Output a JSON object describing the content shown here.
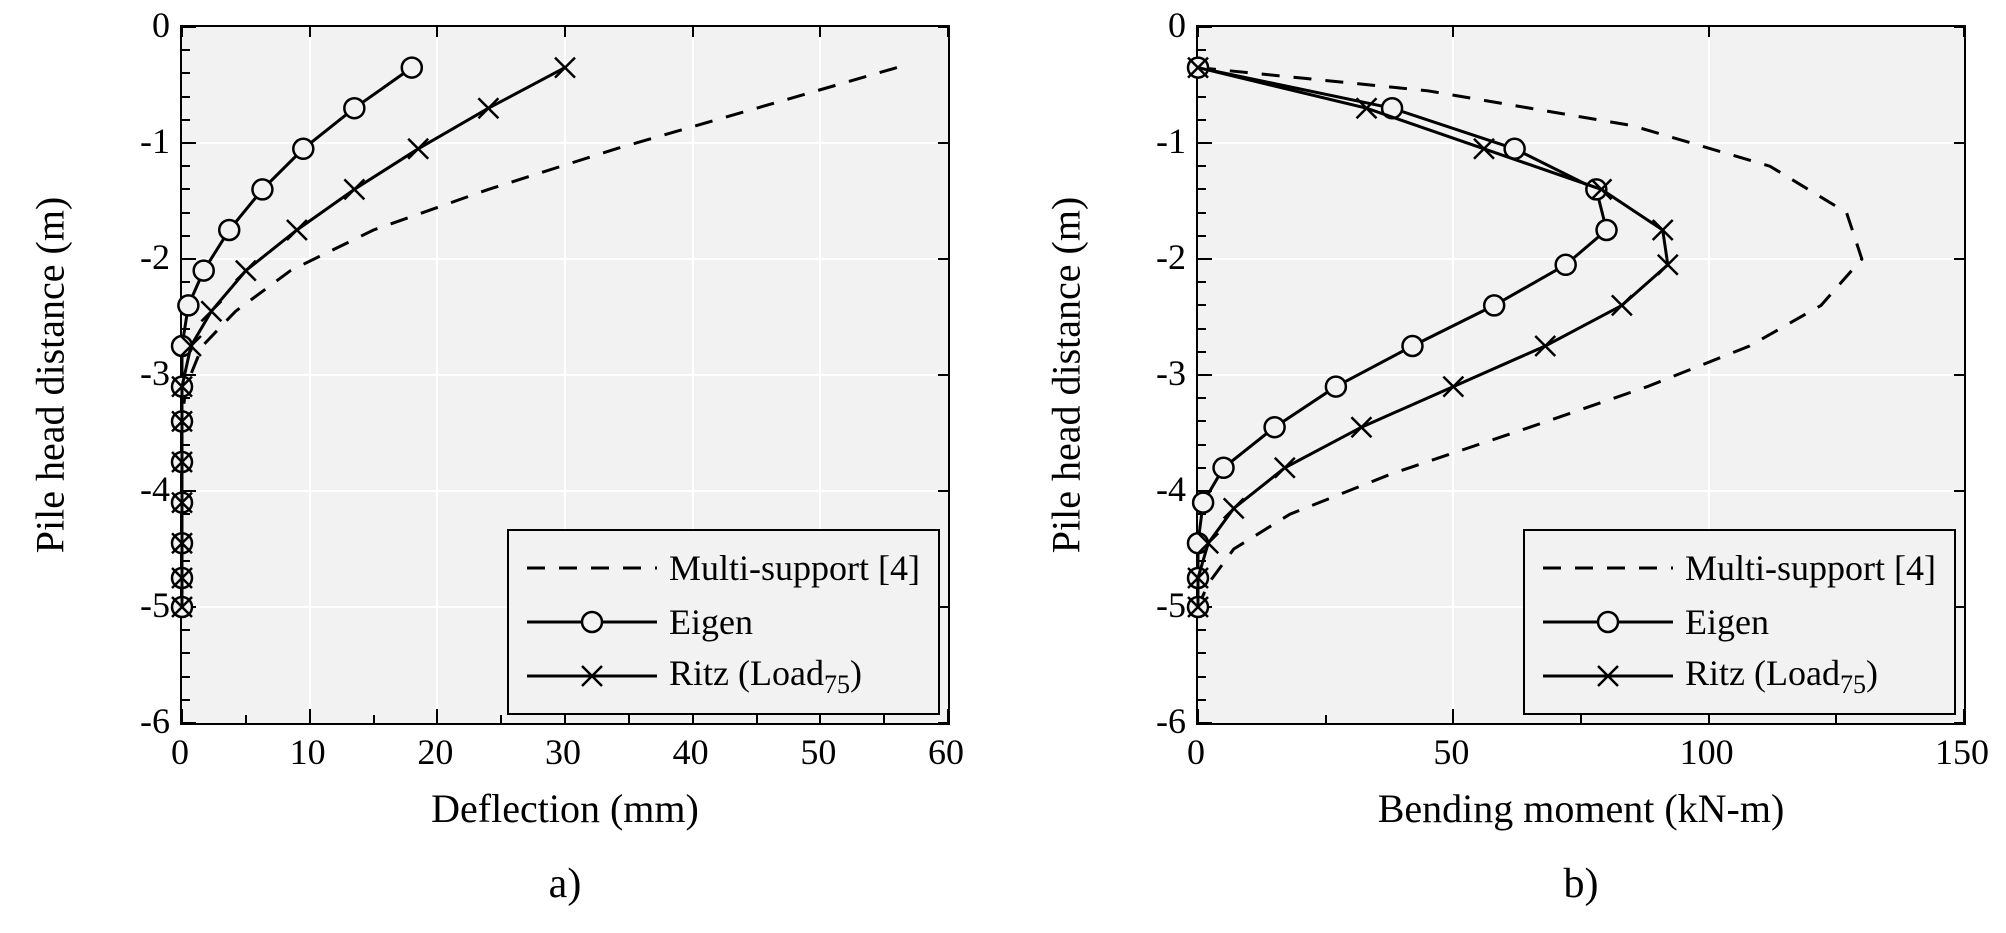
{
  "background_color": "#ffffff",
  "plot_bg_color": "#f2f2f2",
  "grid_color": "#ffffff",
  "axis_color": "#000000",
  "series_color": "#000000",
  "line_width": 3,
  "marker_size": 10,
  "panel_a": {
    "caption": "a)",
    "ylabel": "Pile head distance (m)",
    "xlabel": "Deflection (mm)",
    "xlim": [
      0,
      60
    ],
    "xtick_step": 10,
    "xminor": 2,
    "ylim": [
      -6,
      0
    ],
    "ytick_step": 1,
    "yminor": 5,
    "legend_pos": "lower-right",
    "series": {
      "multi_support": {
        "label": "Multi-support [4]",
        "style": "dash",
        "marker": "none",
        "x": [
          56,
          45,
          34,
          24,
          15,
          8.5,
          4.2,
          1.6,
          0.3,
          0,
          0,
          0,
          0,
          0,
          0
        ],
        "y": [
          -0.35,
          -0.7,
          -1.05,
          -1.4,
          -1.75,
          -2.1,
          -2.45,
          -2.75,
          -3.1,
          -3.4,
          -3.75,
          -4.1,
          -4.45,
          -4.75,
          -5.0
        ]
      },
      "eigen": {
        "label": "Eigen",
        "style": "solid",
        "marker": "circle",
        "x": [
          18,
          13.5,
          9.5,
          6.3,
          3.7,
          1.7,
          0.5,
          0,
          0,
          0,
          0,
          0,
          0,
          0,
          0
        ],
        "y": [
          -0.35,
          -0.7,
          -1.05,
          -1.4,
          -1.75,
          -2.1,
          -2.4,
          -2.75,
          -3.1,
          -3.4,
          -3.75,
          -4.1,
          -4.45,
          -4.75,
          -5.0
        ]
      },
      "ritz": {
        "label": "Ritz (Load75)",
        "label_html": "Ritz (Load<sub>75</sub>)",
        "style": "solid",
        "marker": "x",
        "x": [
          30,
          24,
          18.5,
          13.5,
          9,
          5,
          2.3,
          0.7,
          0,
          0,
          0,
          0,
          0,
          0,
          0
        ],
        "y": [
          -0.35,
          -0.7,
          -1.05,
          -1.4,
          -1.75,
          -2.1,
          -2.45,
          -2.75,
          -3.1,
          -3.4,
          -3.75,
          -4.1,
          -4.45,
          -4.75,
          -5.0
        ]
      }
    }
  },
  "panel_b": {
    "caption": "b)",
    "ylabel": "Pile head distance (m)",
    "xlabel": "Bending moment (kN-m)",
    "xlim": [
      0,
      150
    ],
    "xtick_step": 50,
    "xminor": 2,
    "ylim": [
      -6,
      0
    ],
    "ytick_step": 1,
    "yminor": 5,
    "legend_pos": "lower-right",
    "series": {
      "multi_support": {
        "label": "Multi-support [4]",
        "style": "dash",
        "marker": "none",
        "x": [
          0,
          45,
          85,
          112,
          127,
          130,
          122,
          108,
          88,
          65,
          38,
          18,
          7,
          2,
          0
        ],
        "y": [
          -0.35,
          -0.55,
          -0.85,
          -1.2,
          -1.6,
          -2.0,
          -2.4,
          -2.75,
          -3.1,
          -3.45,
          -3.85,
          -4.2,
          -4.5,
          -4.8,
          -5.0
        ]
      },
      "eigen": {
        "label": "Eigen",
        "style": "solid",
        "marker": "circle",
        "x": [
          0,
          38,
          62,
          78,
          80,
          72,
          58,
          42,
          27,
          15,
          5,
          1,
          0,
          0,
          0
        ],
        "y": [
          -0.35,
          -0.7,
          -1.05,
          -1.4,
          -1.75,
          -2.05,
          -2.4,
          -2.75,
          -3.1,
          -3.45,
          -3.8,
          -4.1,
          -4.45,
          -4.75,
          -5.0
        ]
      },
      "ritz": {
        "label": "Ritz (Load75)",
        "label_html": "Ritz (Load<sub>75</sub>)",
        "style": "solid",
        "marker": "x",
        "x": [
          0,
          33,
          56,
          79,
          91,
          92,
          83,
          68,
          50,
          32,
          17,
          7,
          2,
          0,
          0
        ],
        "y": [
          -0.35,
          -0.7,
          -1.05,
          -1.4,
          -1.75,
          -2.05,
          -2.4,
          -2.75,
          -3.1,
          -3.45,
          -3.8,
          -4.15,
          -4.45,
          -4.75,
          -5.0
        ]
      }
    }
  }
}
